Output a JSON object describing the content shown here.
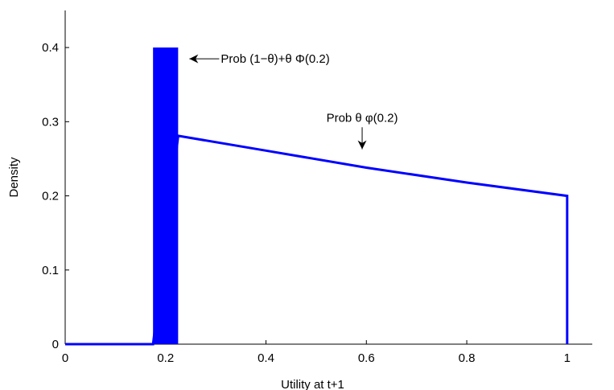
{
  "chart_data": {
    "type": "line",
    "title": "",
    "xlabel": "Utility at t+1",
    "ylabel": "Density",
    "xlim": [
      0,
      1.05
    ],
    "ylim": [
      0,
      0.45
    ],
    "xticks": [
      0,
      0.2,
      0.4,
      0.6,
      0.8,
      1
    ],
    "xtick_labels": [
      "0",
      "0.2",
      "0.4",
      "0.6",
      "0.8",
      "1"
    ],
    "yticks": [
      0,
      0.1,
      0.2,
      0.3,
      0.4
    ],
    "ytick_labels": [
      "0",
      "0.1",
      "0.2",
      "0.3",
      "0.4"
    ],
    "grid": false,
    "series_color": "#0000ff",
    "mass_bar": {
      "x_start": 0.175,
      "x_end": 0.225,
      "height": 0.4
    },
    "series": [
      {
        "x": [
          0,
          0.175,
          0.225,
          0.4,
          0.6,
          0.8,
          1.0,
          1.0
        ],
        "values": [
          0,
          0,
          0.281,
          0.261,
          0.238,
          0.218,
          0.2,
          0
        ]
      }
    ],
    "annotations": [
      {
        "text": "Prob (1−θ)+θ Φ(0.2)",
        "arrow_to": [
          0.225,
          0.4
        ],
        "label_at": [
          0.31,
          0.4
        ]
      },
      {
        "text": "Prob θ φ(0.2)",
        "arrow_to": [
          0.598,
          0.252
        ],
        "label_at": [
          0.598,
          0.299
        ]
      }
    ]
  }
}
